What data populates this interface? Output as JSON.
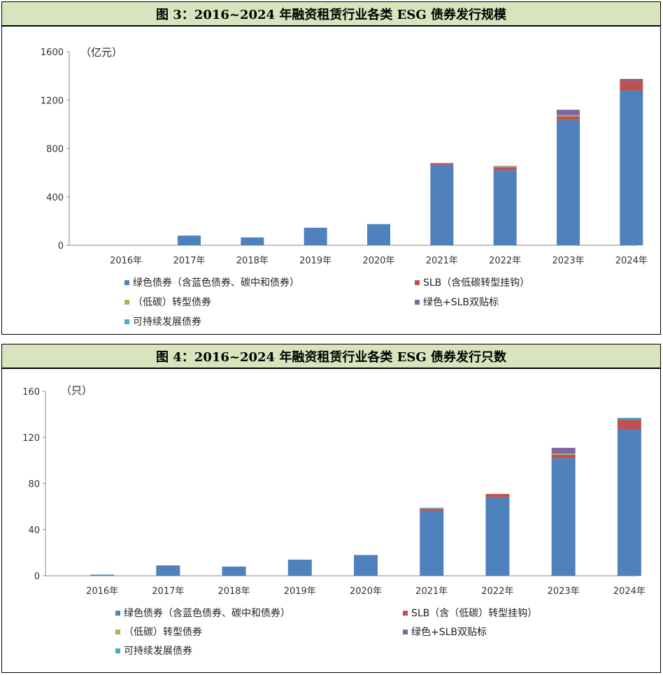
{
  "panel1": {
    "title": "图 3：2016~2024 年融资租赁行业各类 ESG 债券发行规模",
    "chart_data": {
      "type": "bar",
      "stacked": true,
      "unit_label": "（亿元）",
      "categories": [
        "2016年",
        "2017年",
        "2018年",
        "2019年",
        "2020年",
        "2021年",
        "2022年",
        "2023年",
        "2024年"
      ],
      "ylim": [
        0,
        1600
      ],
      "yticks": [
        "0",
        "400",
        "800",
        "1200",
        "1600"
      ],
      "grid": false,
      "legend_position": "bottom",
      "series": [
        {
          "name": "绿色债券（含蓝色债券、碳中和债券）",
          "color": "#4f81bd",
          "values": [
            0,
            80,
            65,
            145,
            175,
            665,
            620,
            1035,
            1280
          ]
        },
        {
          "name": "SLB（含低碳转型挂钩）",
          "color": "#c0504d",
          "values": [
            0,
            0,
            0,
            0,
            0,
            10,
            25,
            30,
            80
          ]
        },
        {
          "name": "（低碳）转型债券",
          "color": "#9bbb59",
          "values": [
            0,
            0,
            0,
            0,
            0,
            0,
            5,
            10,
            0
          ]
        },
        {
          "name": "绿色+SLB双贴标",
          "color": "#8064a2",
          "values": [
            0,
            0,
            0,
            0,
            0,
            5,
            5,
            45,
            15
          ]
        },
        {
          "name": "可持续发展债券",
          "color": "#4bacc6",
          "values": [
            0,
            0,
            0,
            0,
            0,
            0,
            0,
            0,
            0
          ]
        }
      ]
    }
  },
  "panel2": {
    "title": "图 4：2016~2024 年融资租赁行业各类 ESG 债券发行只数",
    "chart_data": {
      "type": "bar",
      "stacked": true,
      "unit_label": "（只）",
      "categories": [
        "2016年",
        "2017年",
        "2018年",
        "2019年",
        "2020年",
        "2021年",
        "2022年",
        "2023年",
        "2024年"
      ],
      "ylim": [
        0,
        160
      ],
      "yticks": [
        "0",
        "40",
        "80",
        "120",
        "160"
      ],
      "grid": false,
      "legend_position": "bottom",
      "series": [
        {
          "name": "绿色债券（含蓝色债券、碳中和债券）",
          "color": "#4f81bd",
          "values": [
            1,
            9,
            8,
            14,
            18,
            56,
            68,
            102,
            127
          ]
        },
        {
          "name": "SLB（含（低碳）转型挂钩）",
          "color": "#c0504d",
          "values": [
            0,
            0,
            0,
            0,
            0,
            2,
            3,
            3,
            8
          ]
        },
        {
          "name": "（低碳）转型债券",
          "color": "#9bbb59",
          "values": [
            0,
            0,
            0,
            0,
            0,
            0,
            0,
            1,
            0
          ]
        },
        {
          "name": "绿色+SLB双贴标",
          "color": "#8064a2",
          "values": [
            0,
            0,
            0,
            0,
            0,
            0,
            0,
            5,
            1
          ]
        },
        {
          "name": "可持续发展债券",
          "color": "#4bacc6",
          "values": [
            0,
            0,
            0,
            0,
            0,
            1,
            0,
            0,
            1
          ]
        }
      ]
    }
  }
}
